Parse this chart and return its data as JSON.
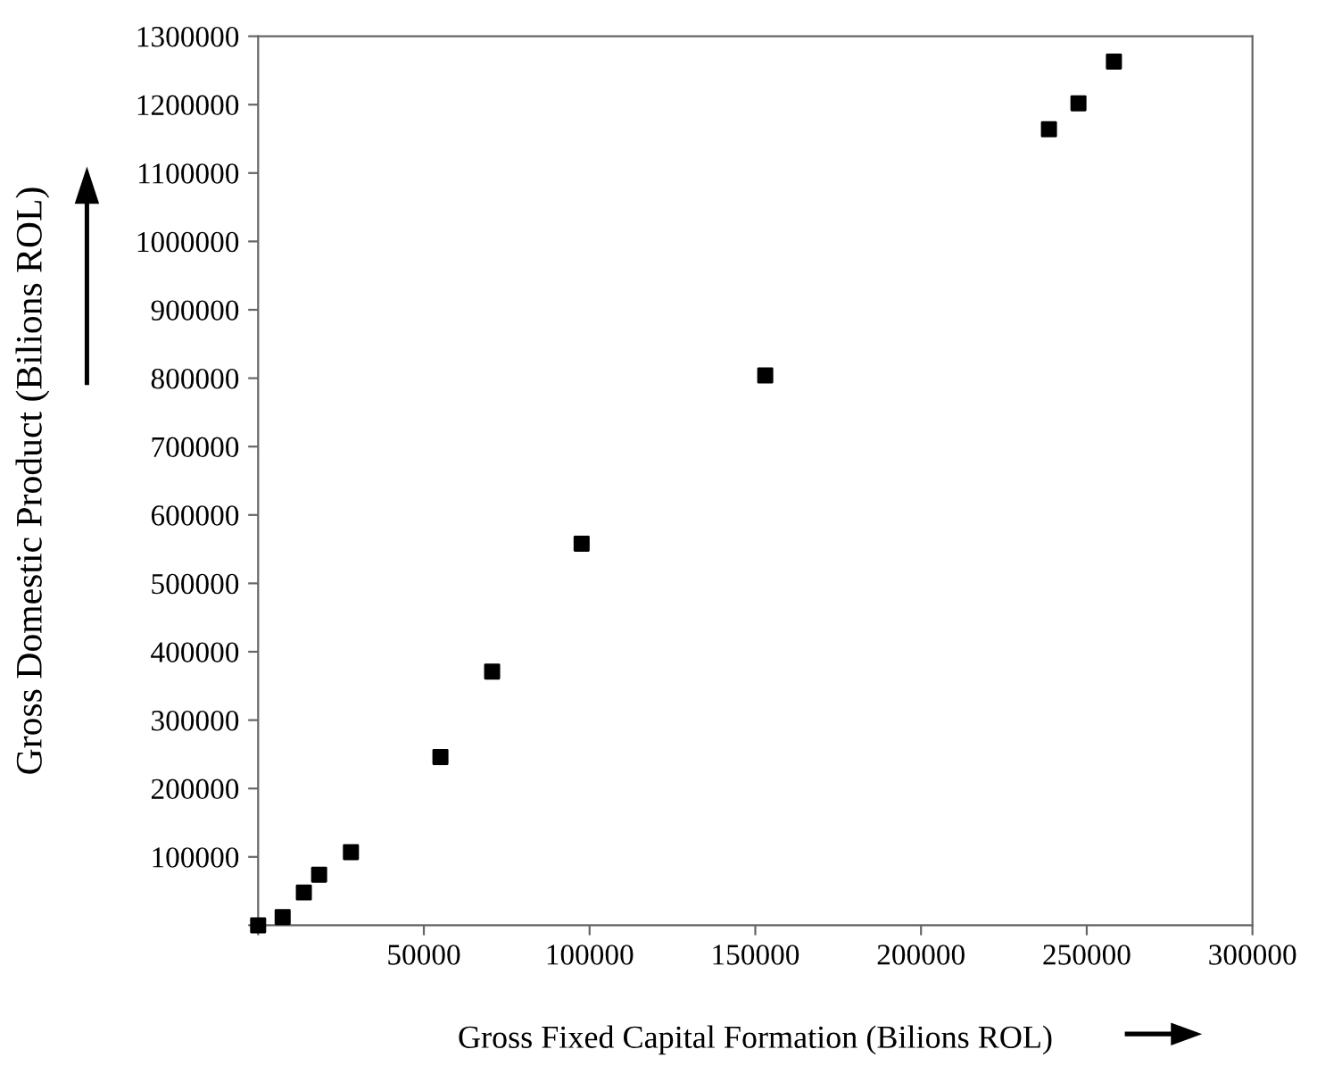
{
  "chart_data": {
    "type": "scatter",
    "xlabel": "Gross Fixed Capital Formation (Bilions ROL)",
    "ylabel": "Gross Domestic Product (Bilions ROL)",
    "x": [
      0,
      7400,
      13800,
      18400,
      28000,
      55000,
      70600,
      97600,
      153000,
      238600,
      247500,
      258200
    ],
    "values": [
      0,
      12000,
      48000,
      74000,
      107000,
      246000,
      371000,
      558000,
      804000,
      1164000,
      1202000,
      1263000
    ],
    "color": "#000000",
    "marker": "square",
    "xlim": [
      0,
      300000
    ],
    "ylim": [
      0,
      1300000
    ],
    "xticks": [
      {
        "value": 0,
        "label": null
      },
      50000,
      100000,
      150000,
      200000,
      250000,
      300000
    ],
    "yticks": [
      {
        "value": 0,
        "label": null
      },
      100000,
      200000,
      300000,
      400000,
      500000,
      600000,
      700000,
      800000,
      900000,
      1000000,
      1100000,
      1200000,
      1300000
    ],
    "grid": false,
    "legend": false
  }
}
